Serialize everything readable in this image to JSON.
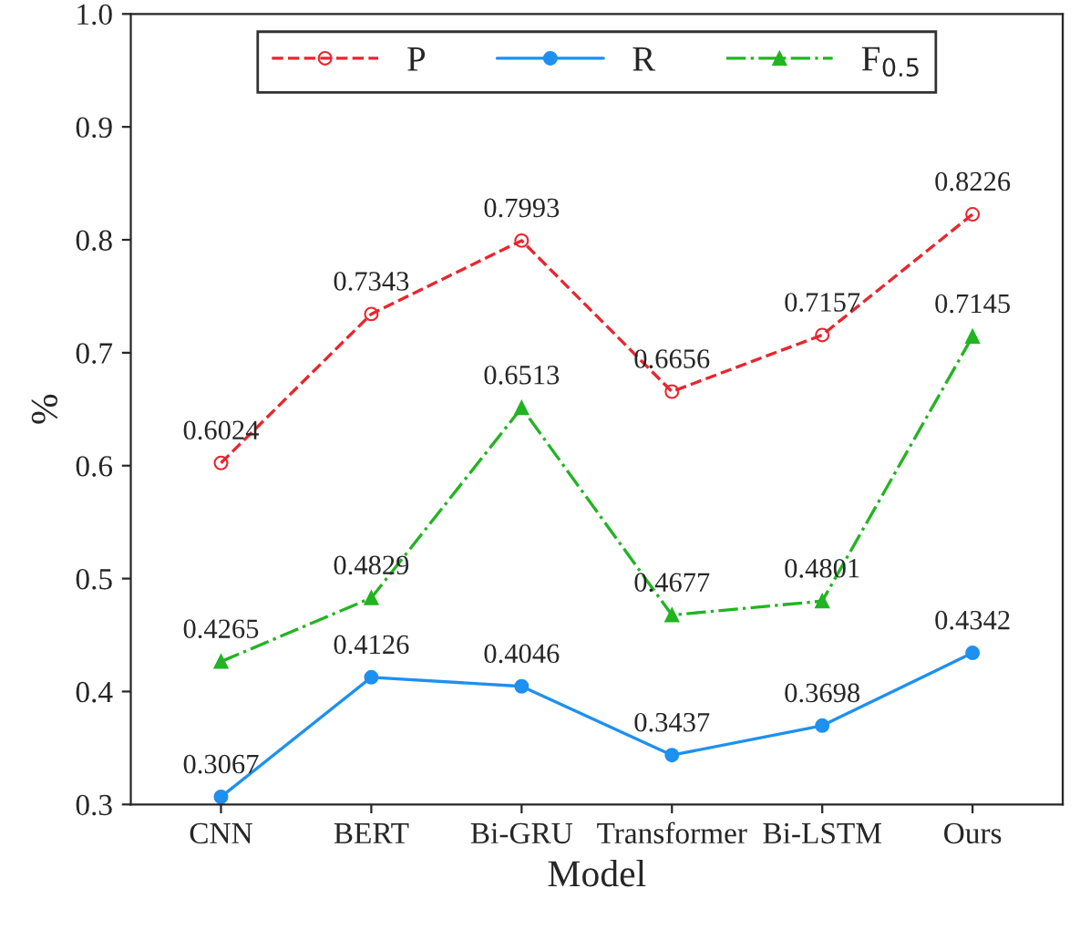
{
  "chart_data": {
    "type": "line",
    "xlabel": "Model",
    "ylabel": "%",
    "categories": [
      "CNN",
      "BERT",
      "Bi-GRU",
      "Transformer",
      "Bi-LSTM",
      "Ours"
    ],
    "series": [
      {
        "name": "P",
        "color": "#e8262e",
        "marker": "circle",
        "line_style": "dashed",
        "values": [
          0.6024,
          0.7343,
          0.7993,
          0.6656,
          0.7157,
          0.8226
        ]
      },
      {
        "name": "R",
        "color": "#1e90f0",
        "marker": "circle",
        "line_style": "solid",
        "values": [
          0.3067,
          0.4126,
          0.4046,
          0.3437,
          0.3698,
          0.4342
        ]
      },
      {
        "name": "F$_{0.5}$",
        "color": "#22b422",
        "marker": "triangle",
        "line_style": "dashdot",
        "values": [
          0.4265,
          0.4829,
          0.6513,
          0.4677,
          0.4801,
          0.7145
        ]
      }
    ],
    "ylim": [
      0.3,
      1.0
    ],
    "yticks": [
      0.3,
      0.4,
      0.5,
      0.6,
      0.7,
      0.8,
      0.9,
      {
        "value": 1.0,
        "label": "1.0"
      }
    ],
    "data_labels": true,
    "legend": "top",
    "grid": false
  }
}
